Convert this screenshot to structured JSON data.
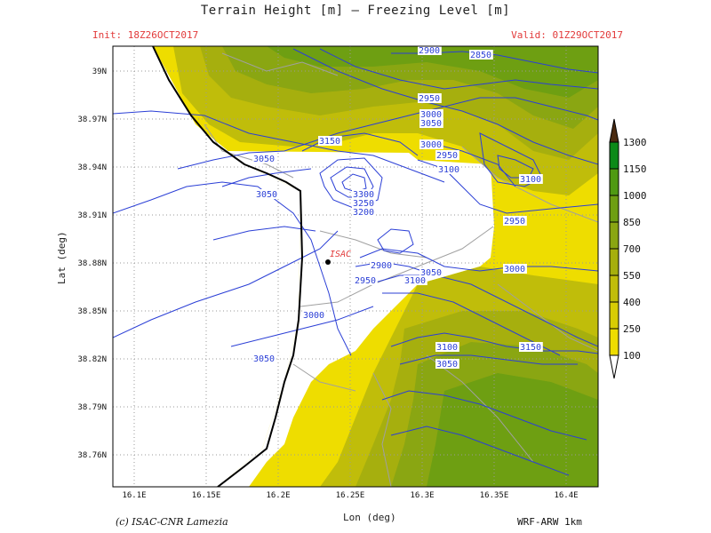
{
  "title": "Terrain Height [m] — Freezing Level [m]",
  "init": "Init: 18Z26OCT2017",
  "valid": "Valid: 01Z29OCT2017",
  "xaxis_label": "Lon (deg)",
  "yaxis_label": "Lat (deg)",
  "credit": "(c) ISAC-CNR Lamezia",
  "model": "WRF-ARW 1km",
  "x_ticks": [
    "16.1E",
    "16.15E",
    "16.2E",
    "16.25E",
    "16.3E",
    "16.35E",
    "16.4E"
  ],
  "y_ticks": [
    "39N",
    "38.97N",
    "38.94N",
    "38.91N",
    "38.88N",
    "38.85N",
    "38.82N",
    "38.79N",
    "38.76N"
  ],
  "station": {
    "name": "ISAC",
    "lon": 16.24,
    "lat": 38.88
  },
  "colorbar": {
    "levels": [
      "1300",
      "1150",
      "1000",
      "850",
      "700",
      "550",
      "400",
      "250",
      "100"
    ],
    "colors": [
      "#4a2a10",
      "#0c8a18",
      "#4f9a12",
      "#6e9f12",
      "#8aa612",
      "#a6af0e",
      "#c0bd0a",
      "#d8cc04",
      "#eedd00"
    ]
  },
  "contour_labels": [
    "2900",
    "2850",
    "2950",
    "3000",
    "3050",
    "3150",
    "3050",
    "3000",
    "2950",
    "3100",
    "3050",
    "3100",
    "3300",
    "3250",
    "3200",
    "2950",
    "3100",
    "2900",
    "2950",
    "3050",
    "3100",
    "3000",
    "3000",
    "3050",
    "3100",
    "3150",
    "3050"
  ],
  "colors": {
    "contour": "#2b3fd6",
    "coast": "#000000",
    "station_label": "#e23a3a",
    "terrain_low": "#eedd00",
    "terrain_high": "#6e9f12"
  }
}
